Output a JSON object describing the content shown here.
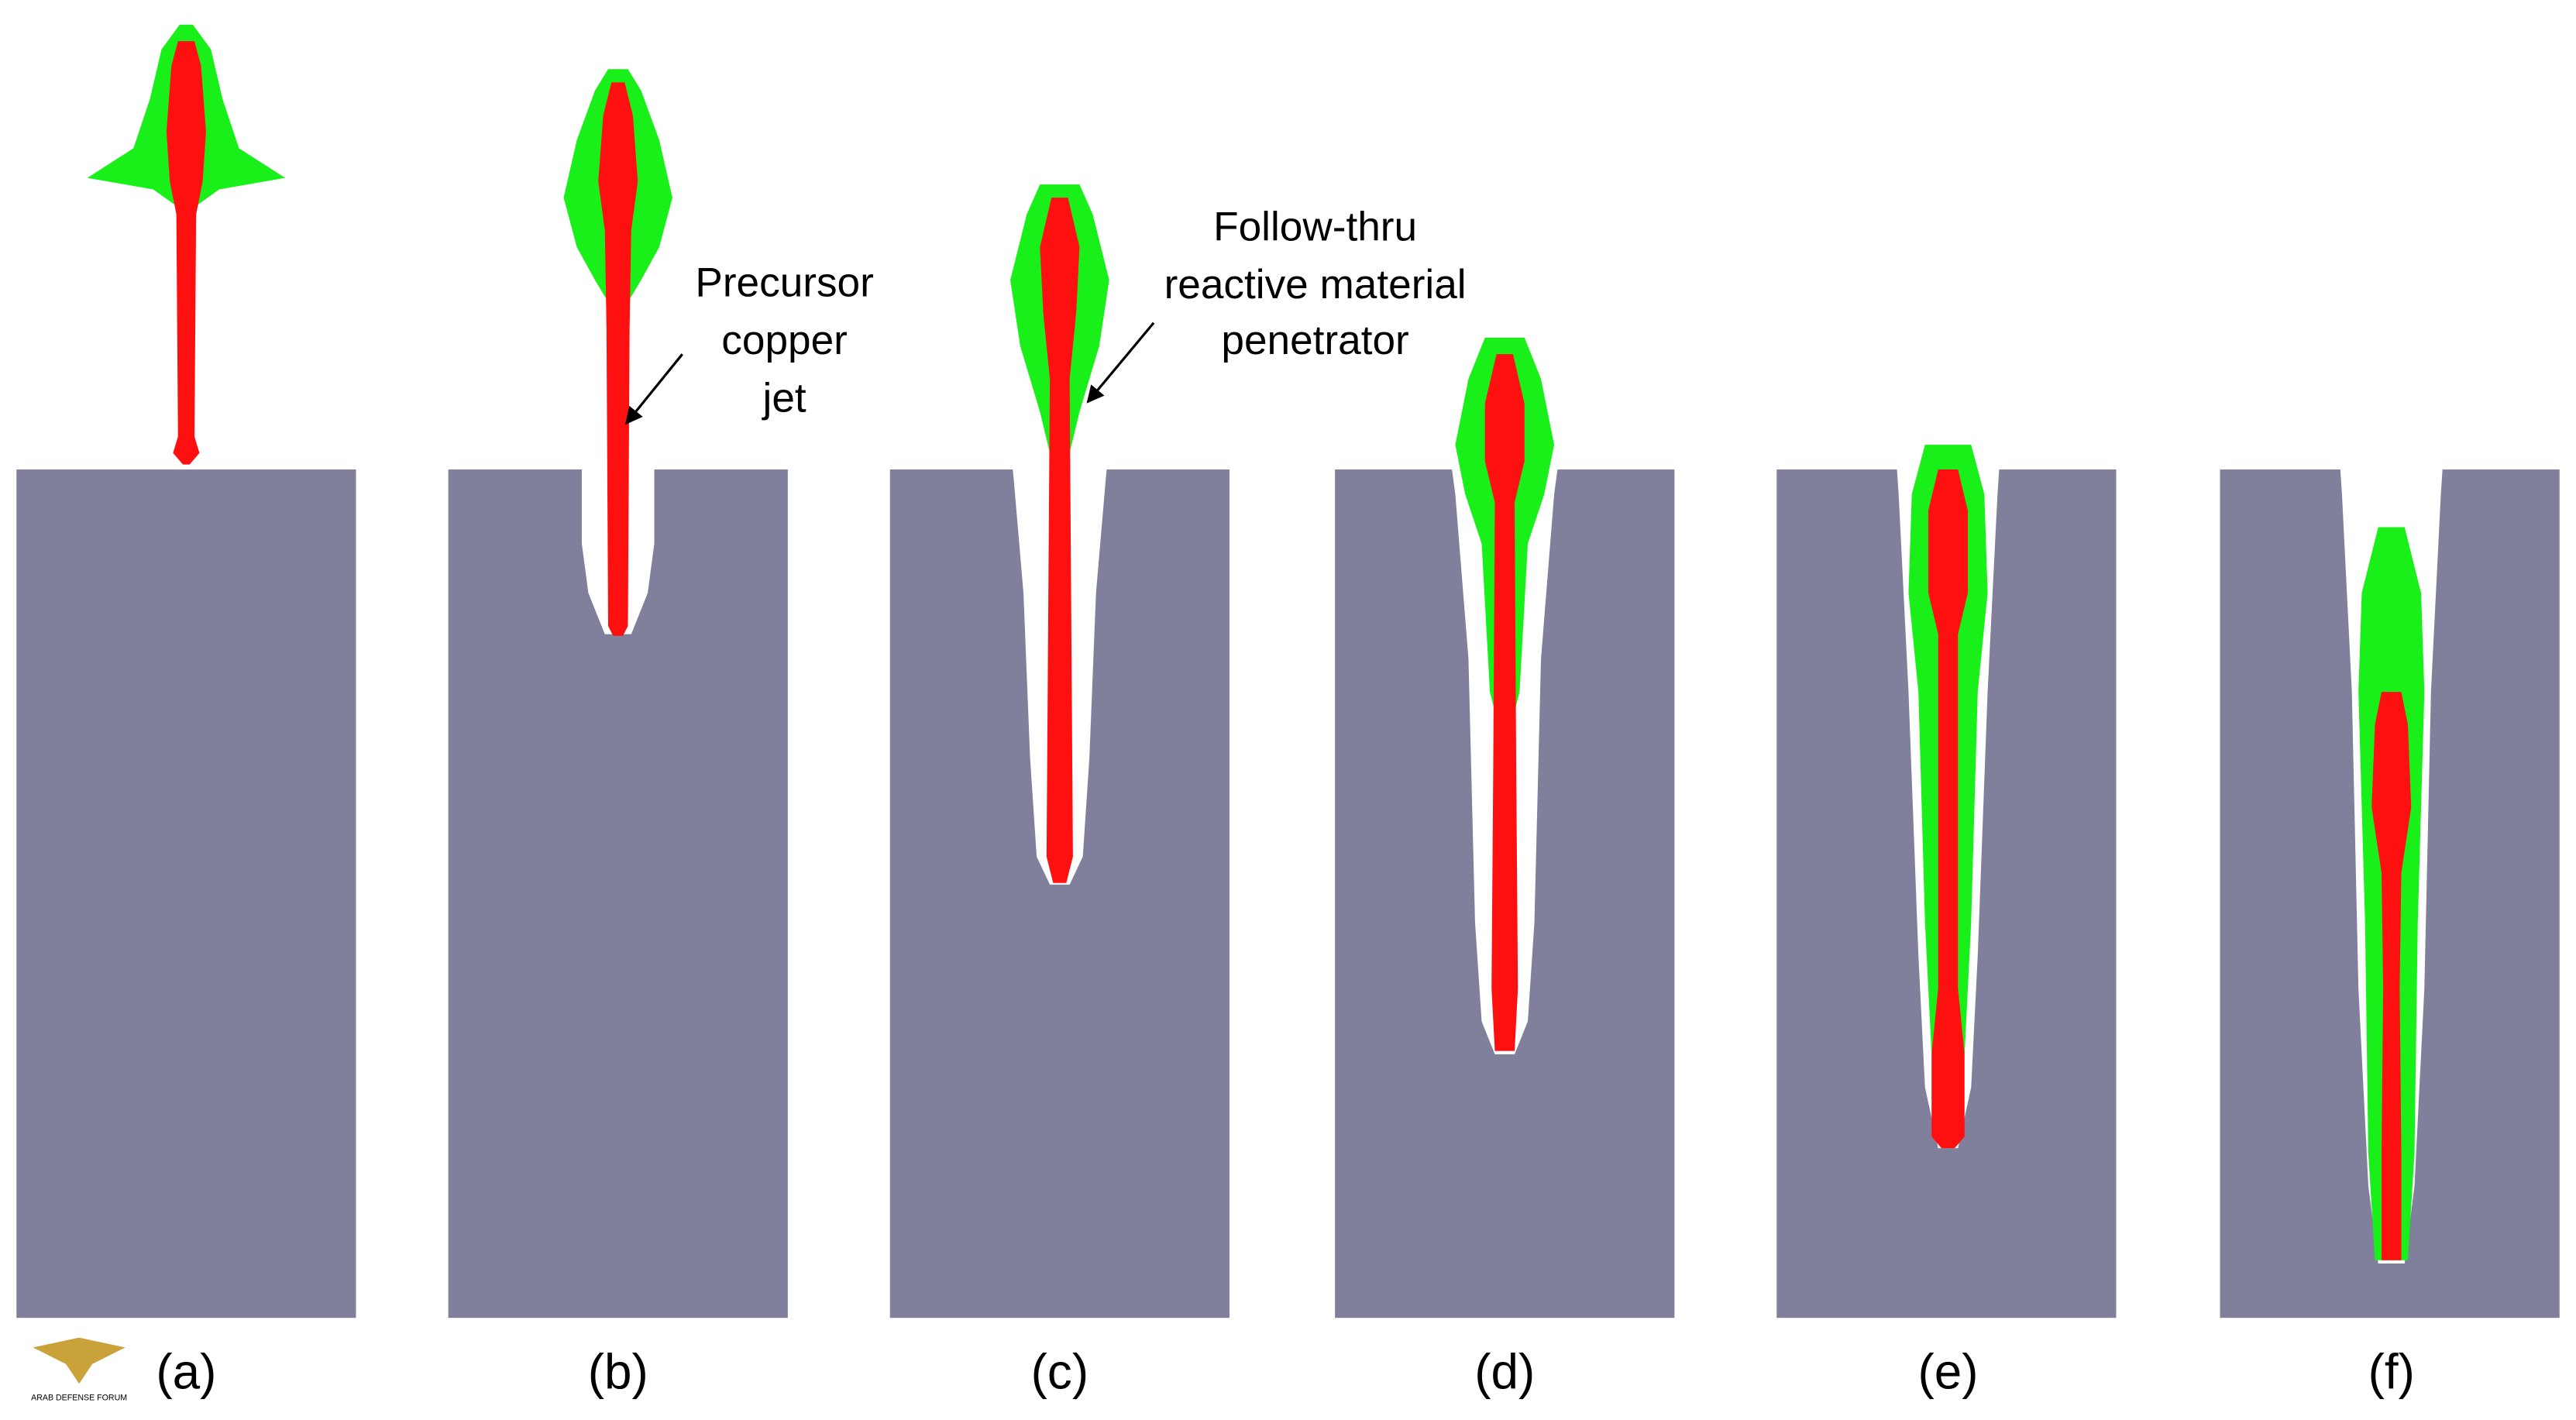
{
  "panels": [
    {
      "label": "(a)"
    },
    {
      "label": "(b)"
    },
    {
      "label": "(c)"
    },
    {
      "label": "(d)"
    },
    {
      "label": "(e)"
    },
    {
      "label": "(f)"
    }
  ],
  "annotations": [
    {
      "lines": [
        "Precursor",
        "copper",
        "jet"
      ]
    },
    {
      "lines": [
        "Follow-thru",
        "reactive material",
        "penetrator"
      ]
    }
  ],
  "watermark": "ARAB DEFENSE FORUM"
}
